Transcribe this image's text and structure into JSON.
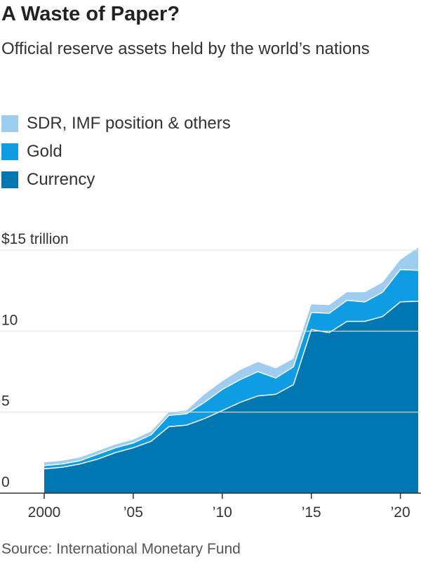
{
  "header": {
    "title": "A Waste of Paper?",
    "subtitle": "Official reserve assets held by the world’s nations"
  },
  "legend": [
    {
      "label": "SDR, IMF position & others",
      "color": "#9fcdef"
    },
    {
      "label": "Gold",
      "color": "#0e9de3"
    },
    {
      "label": "Currency",
      "color": "#0077b0"
    }
  ],
  "source": "Source: International Monetary Fund",
  "chart_data": {
    "type": "area",
    "stacked": true,
    "x": [
      2000,
      2001,
      2002,
      2003,
      2004,
      2005,
      2006,
      2007,
      2008,
      2009,
      2010,
      2011,
      2012,
      2013,
      2014,
      2015,
      2016,
      2017,
      2018,
      2019,
      2020,
      2021
    ],
    "xlim": [
      2000,
      2021
    ],
    "x_ticks": [
      {
        "value": 2000,
        "label": "2000"
      },
      {
        "value": 2005,
        "label": "’05"
      },
      {
        "value": 2010,
        "label": "’10"
      },
      {
        "value": 2015,
        "label": "’15"
      },
      {
        "value": 2020,
        "label": "’20"
      }
    ],
    "ylim": [
      0,
      15
    ],
    "y_ticks": [
      {
        "value": 0,
        "label": "0"
      },
      {
        "value": 5,
        "label": "5"
      },
      {
        "value": 10,
        "label": "10"
      },
      {
        "value": 15,
        "label": "$15 trillion"
      }
    ],
    "grid": true,
    "series": [
      {
        "name": "Currency",
        "color": "#0077b0",
        "values": [
          1.5,
          1.6,
          1.8,
          2.1,
          2.5,
          2.8,
          3.2,
          4.1,
          4.2,
          4.6,
          5.1,
          5.6,
          6.0,
          6.1,
          6.7,
          10.1,
          9.9,
          10.6,
          10.6,
          10.9,
          11.8,
          11.85
        ]
      },
      {
        "name": "Gold",
        "color": "#0e9de3",
        "values": [
          0.2,
          0.2,
          0.2,
          0.3,
          0.3,
          0.3,
          0.4,
          0.7,
          0.7,
          1.0,
          1.3,
          1.4,
          1.5,
          1.0,
          1.1,
          1.05,
          1.2,
          1.3,
          1.2,
          1.5,
          2.0,
          1.9
        ]
      },
      {
        "name": "SDR, IMF position & others",
        "color": "#9fcdef",
        "values": [
          0.2,
          0.2,
          0.2,
          0.2,
          0.2,
          0.2,
          0.2,
          0.2,
          0.2,
          0.5,
          0.5,
          0.6,
          0.6,
          0.6,
          0.5,
          0.5,
          0.5,
          0.5,
          0.6,
          0.6,
          0.6,
          1.4
        ]
      }
    ]
  }
}
